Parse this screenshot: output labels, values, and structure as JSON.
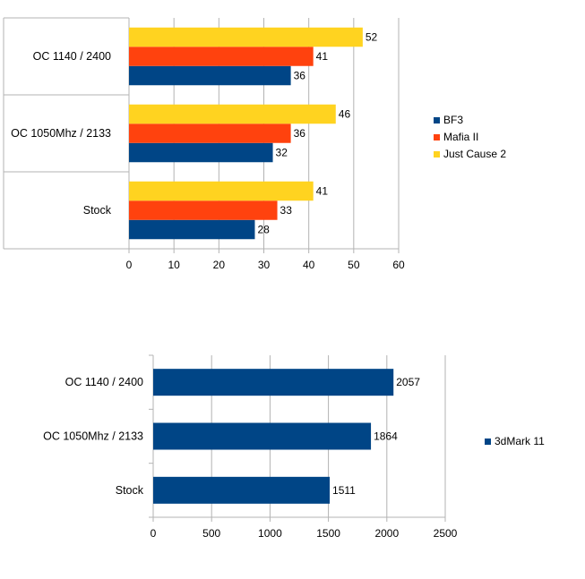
{
  "chart_data": [
    {
      "type": "bar",
      "orientation": "horizontal",
      "title": "",
      "xlabel": "",
      "ylabel": "",
      "categories": [
        "OC 1140 / 2400",
        "OC 1050Mhz / 2133",
        "Stock"
      ],
      "series": [
        {
          "name": "BF3",
          "color": "#004586",
          "values": [
            36,
            32,
            28
          ]
        },
        {
          "name": "Mafia II",
          "color": "#ff420e",
          "values": [
            41,
            36,
            33
          ]
        },
        {
          "name": "Just Cause 2",
          "color": "#ffd320",
          "values": [
            52,
            46,
            41
          ]
        }
      ],
      "xlim": [
        0,
        60
      ],
      "xticks": [
        0,
        10,
        20,
        30,
        40,
        50,
        60
      ],
      "grid": "vertical",
      "legend": "right"
    },
    {
      "type": "bar",
      "orientation": "horizontal",
      "title": "",
      "xlabel": "",
      "ylabel": "",
      "categories": [
        "OC 1140 / 2400",
        "OC 1050Mhz / 2133",
        "Stock"
      ],
      "series": [
        {
          "name": "3dMark 11",
          "color": "#004586",
          "values": [
            2057,
            1864,
            1511
          ]
        }
      ],
      "xlim": [
        0,
        2500
      ],
      "xticks": [
        0,
        500,
        1000,
        1500,
        2000,
        2500
      ],
      "grid": "vertical",
      "legend": "right"
    }
  ]
}
